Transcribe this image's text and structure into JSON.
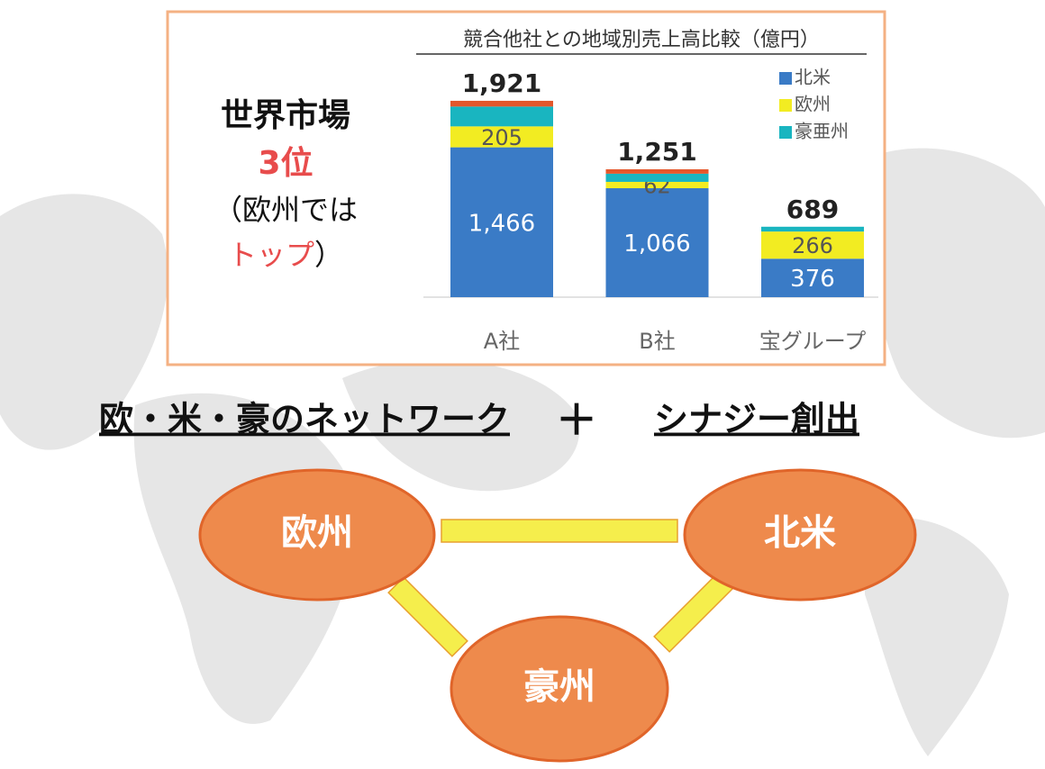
{
  "chart_data": {
    "type": "bar",
    "stacked": true,
    "title": "競合他社との地域別売上高比較（億円）",
    "categories": [
      "A社",
      "B社",
      "宝グループ"
    ],
    "series": [
      {
        "name": "北米",
        "color": "#3a7bc6",
        "values": [
          1466,
          1066,
          376
        ],
        "value_labels": [
          "1,466",
          "1,066",
          "376"
        ]
      },
      {
        "name": "欧州",
        "color": "#f2ec22",
        "values": [
          205,
          62,
          266
        ]
      },
      {
        "name": "豪亜州",
        "color": "#19b5c0",
        "values": [
          194,
          80,
          47
        ]
      },
      {
        "color": "#e5572b",
        "values": [
          56,
          43,
          0
        ]
      }
    ],
    "totals": [
      1921,
      1251,
      689
    ],
    "total_labels": [
      "1,921",
      "1,251",
      "689"
    ],
    "ylim": [
      0,
      2000
    ]
  },
  "headline": {
    "lines": [
      "世界市場",
      "3位",
      "（欧州では"
    ],
    "last_red": "トップ",
    "last_end": "）"
  },
  "banner": {
    "left": "欧・米・豪のネットワーク",
    "plus": "＋",
    "right": "シナジー創出"
  },
  "nodes": [
    {
      "label": "欧州"
    },
    {
      "label": "北米"
    },
    {
      "label": "豪州"
    }
  ]
}
